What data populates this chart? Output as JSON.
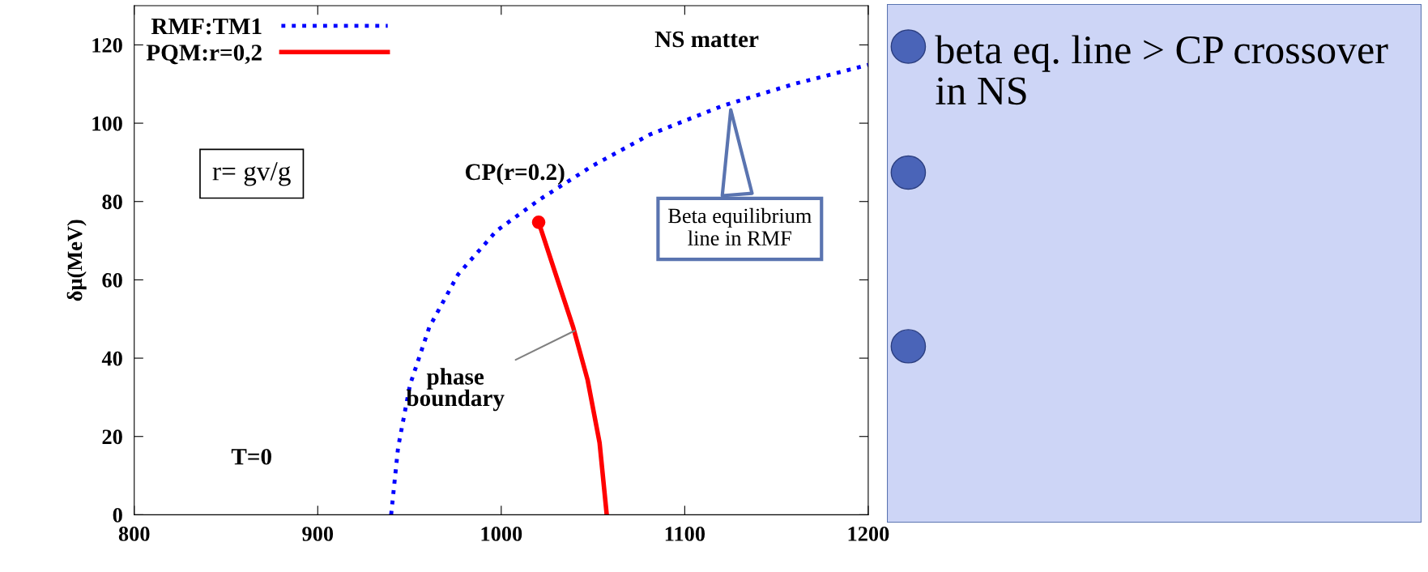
{
  "chart_data": [
    {
      "type": "line",
      "ylabel": "δμ(MeV)",
      "xlim": [
        800,
        1200
      ],
      "xticks": [
        800,
        900,
        1000,
        1100,
        1200
      ],
      "ylim": [
        0,
        130
      ],
      "yticks": [
        0,
        20,
        40,
        60,
        80,
        100,
        120
      ],
      "legend": "top left",
      "grid": false,
      "series": [
        {
          "name": "RMF:TM1",
          "color": "#0000ff",
          "line_style": "dotted",
          "x": [
            940,
            943.8,
            950.3,
            960.8,
            976.5,
            997.4,
            1020.9,
            1049.7,
            1081,
            1120.3,
            1159.5,
            1200
          ],
          "values": [
            0,
            17.2,
            33.2,
            47.9,
            61.4,
            72.5,
            80.5,
            89.1,
            97.1,
            104.4,
            110,
            114.9
          ]
        },
        {
          "name": "PQM:r=0,2",
          "color": "#ff0000",
          "line_style": "solid",
          "x": [
            1020.4,
            1028.8,
            1039.2,
            1047.1,
            1053.6,
            1057.5
          ],
          "values": [
            74.7,
            62.7,
            47.9,
            34.4,
            18.4,
            0
          ]
        },
        {
          "type": "scatter",
          "color": "#ff0000",
          "marker": "circle",
          "x": [
            1020.4
          ],
          "values": [
            74.7
          ]
        }
      ],
      "annotations": [
        "NS matter",
        "r= gv/g",
        "T=0",
        {
          "text": "CP(r=0.2)",
          "x": 1020.4,
          "y": 74.7
        },
        {
          "text": "phase\nboundary",
          "x": 1040,
          "y": 47
        },
        {
          "text": "Beta equilibrium\nline in RMF",
          "x": 1125,
          "y": 104
        }
      ]
    },
    {
      "type": "other",
      "annotations": [
        "beta eq. line > CP crossover in NS"
      ]
    }
  ]
}
